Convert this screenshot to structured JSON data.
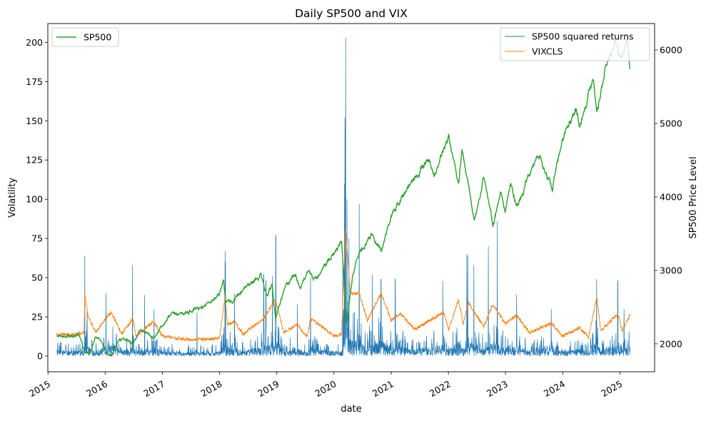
{
  "chart_data": {
    "type": "line",
    "title": "Daily SP500 and VIX",
    "xlabel": "date",
    "ylabel_left": "Volatility",
    "ylabel_right": "SP500 Price Level",
    "xlim": [
      "2014-12-31",
      "2025-08-10"
    ],
    "ylim_left": [
      -10,
      212
    ],
    "ylim_right": [
      1620,
      6360
    ],
    "x_ticks": [
      "2015",
      "2016",
      "2017",
      "2018",
      "2019",
      "2020",
      "2021",
      "2022",
      "2023",
      "2024",
      "2025"
    ],
    "y_ticks_left": [
      0,
      25,
      50,
      75,
      100,
      125,
      150,
      175,
      200
    ],
    "y_ticks_right": [
      2000,
      3000,
      4000,
      5000,
      6000
    ],
    "legend_left": {
      "placement": "top-left",
      "entries": [
        "SP500"
      ]
    },
    "legend_right": {
      "placement": "top-right",
      "entries": [
        "SP500 squared returns",
        "VIXCLS"
      ]
    },
    "colors": {
      "SP500": "#2ca02c",
      "SP500 squared returns": "#1f77b4",
      "VIXCLS": "#ff7f0e"
    },
    "series": [
      {
        "name": "SP500",
        "axis": "right",
        "points": [
          [
            "2015-02-27",
            2100
          ],
          [
            "2015-04-15",
            2095
          ],
          [
            "2015-06-01",
            2110
          ],
          [
            "2015-07-20",
            2125
          ],
          [
            "2015-08-25",
            1880
          ],
          [
            "2015-09-29",
            1885
          ],
          [
            "2015-11-03",
            2105
          ],
          [
            "2015-12-15",
            2040
          ],
          [
            "2016-01-20",
            1860
          ],
          [
            "2016-02-11",
            1830
          ],
          [
            "2016-03-31",
            2060
          ],
          [
            "2016-05-20",
            2050
          ],
          [
            "2016-06-27",
            2000
          ],
          [
            "2016-08-15",
            2190
          ],
          [
            "2016-11-04",
            2085
          ],
          [
            "2016-12-30",
            2240
          ],
          [
            "2017-03-01",
            2395
          ],
          [
            "2017-06-01",
            2430
          ],
          [
            "2017-09-01",
            2475
          ],
          [
            "2017-12-29",
            2675
          ],
          [
            "2018-01-26",
            2870
          ],
          [
            "2018-02-08",
            2580
          ],
          [
            "2018-04-02",
            2580
          ],
          [
            "2018-06-12",
            2785
          ],
          [
            "2018-09-20",
            2930
          ],
          [
            "2018-10-29",
            2640
          ],
          [
            "2018-12-03",
            2790
          ],
          [
            "2018-12-24",
            2350
          ],
          [
            "2019-02-28",
            2780
          ],
          [
            "2019-04-30",
            2945
          ],
          [
            "2019-06-03",
            2745
          ],
          [
            "2019-07-26",
            3025
          ],
          [
            "2019-08-23",
            2845
          ],
          [
            "2019-10-31",
            3035
          ],
          [
            "2019-12-31",
            3230
          ],
          [
            "2020-02-19",
            3385
          ],
          [
            "2020-03-23",
            2235
          ],
          [
            "2020-04-29",
            2940
          ],
          [
            "2020-06-08",
            3230
          ],
          [
            "2020-08-31",
            3500
          ],
          [
            "2020-10-30",
            3270
          ],
          [
            "2020-12-31",
            3755
          ],
          [
            "2021-04-30",
            4180
          ],
          [
            "2021-08-31",
            4520
          ],
          [
            "2021-10-04",
            4300
          ],
          [
            "2022-01-03",
            4795
          ],
          [
            "2022-03-08",
            4170
          ],
          [
            "2022-03-29",
            4630
          ],
          [
            "2022-06-16",
            3665
          ],
          [
            "2022-08-16",
            4305
          ],
          [
            "2022-10-12",
            3575
          ],
          [
            "2022-12-01",
            4075
          ],
          [
            "2022-12-28",
            3785
          ],
          [
            "2023-02-02",
            4180
          ],
          [
            "2023-03-13",
            3855
          ],
          [
            "2023-07-31",
            4590
          ],
          [
            "2023-10-27",
            4115
          ],
          [
            "2023-12-29",
            4770
          ],
          [
            "2024-03-28",
            5255
          ],
          [
            "2024-04-19",
            4965
          ],
          [
            "2024-07-16",
            5665
          ],
          [
            "2024-08-05",
            5185
          ],
          [
            "2024-09-30",
            5760
          ],
          [
            "2024-12-06",
            6090
          ],
          [
            "2024-12-31",
            5880
          ],
          [
            "2025-02-19",
            6145
          ],
          [
            "2025-03-07",
            5770
          ]
        ]
      },
      {
        "name": "SP500 squared returns",
        "axis": "left",
        "baseline": 3.5,
        "noise_amplitude": 14,
        "spikes": [
          [
            "2015-08-24",
            64
          ],
          [
            "2015-09-08",
            28
          ],
          [
            "2016-01-07",
            40
          ],
          [
            "2016-06-24",
            58
          ],
          [
            "2016-09-09",
            39
          ],
          [
            "2016-11-08",
            30
          ],
          [
            "2017-08-10",
            28
          ],
          [
            "2018-02-05",
            67
          ],
          [
            "2018-02-08",
            60
          ],
          [
            "2018-04-06",
            40
          ],
          [
            "2018-10-10",
            52
          ],
          [
            "2018-10-24",
            48
          ],
          [
            "2018-12-04",
            51
          ],
          [
            "2018-12-26",
            77
          ],
          [
            "2019-05-13",
            33
          ],
          [
            "2019-08-05",
            50
          ],
          [
            "2020-02-27",
            58
          ],
          [
            "2020-03-09",
            110
          ],
          [
            "2020-03-12",
            152
          ],
          [
            "2020-03-13",
            130
          ],
          [
            "2020-03-16",
            203
          ],
          [
            "2020-03-24",
            100
          ],
          [
            "2020-04-06",
            75
          ],
          [
            "2020-06-11",
            97
          ],
          [
            "2020-09-03",
            52
          ],
          [
            "2020-10-28",
            49
          ],
          [
            "2021-01-27",
            49
          ],
          [
            "2021-11-26",
            48
          ],
          [
            "2022-04-29",
            65
          ],
          [
            "2022-05-05",
            64
          ],
          [
            "2022-06-13",
            58
          ],
          [
            "2022-09-13",
            70
          ],
          [
            "2022-11-10",
            86
          ],
          [
            "2023-03-13",
            39
          ],
          [
            "2023-10-20",
            30
          ],
          [
            "2024-08-05",
            49
          ],
          [
            "2024-12-18",
            48
          ],
          [
            "2025-01-27",
            30
          ],
          [
            "2025-03-10",
            26
          ]
        ]
      },
      {
        "name": "VIXCLS",
        "axis": "left",
        "noise_amplitude": 2.2,
        "points": [
          [
            "2015-02-27",
            14
          ],
          [
            "2015-06-01",
            13.5
          ],
          [
            "2015-08-20",
            15
          ],
          [
            "2015-08-24",
            40
          ],
          [
            "2015-09-15",
            25
          ],
          [
            "2015-11-01",
            15
          ],
          [
            "2016-01-20",
            26
          ],
          [
            "2016-02-11",
            28
          ],
          [
            "2016-04-15",
            14
          ],
          [
            "2016-06-27",
            24
          ],
          [
            "2016-07-15",
            12.5
          ],
          [
            "2016-11-04",
            22
          ],
          [
            "2016-12-30",
            13
          ],
          [
            "2017-06-01",
            10.5
          ],
          [
            "2017-12-29",
            11
          ],
          [
            "2018-02-05",
            37
          ],
          [
            "2018-02-20",
            20
          ],
          [
            "2018-04-06",
            22
          ],
          [
            "2018-06-01",
            14
          ],
          [
            "2018-10-10",
            24
          ],
          [
            "2018-12-24",
            36
          ],
          [
            "2019-02-15",
            15
          ],
          [
            "2019-05-13",
            20
          ],
          [
            "2019-07-15",
            12.5
          ],
          [
            "2019-08-05",
            24
          ],
          [
            "2019-12-31",
            13
          ],
          [
            "2020-02-19",
            14
          ],
          [
            "2020-03-16",
            82
          ],
          [
            "2020-04-15",
            40
          ],
          [
            "2020-06-11",
            40
          ],
          [
            "2020-08-01",
            23
          ],
          [
            "2020-10-28",
            40
          ],
          [
            "2020-12-31",
            23
          ],
          [
            "2021-03-01",
            27
          ],
          [
            "2021-06-01",
            17
          ],
          [
            "2021-11-30",
            28
          ],
          [
            "2022-01-03",
            17
          ],
          [
            "2022-03-07",
            36
          ],
          [
            "2022-04-05",
            20
          ],
          [
            "2022-05-09",
            34
          ],
          [
            "2022-08-16",
            19
          ],
          [
            "2022-10-12",
            33
          ],
          [
            "2022-12-30",
            21
          ],
          [
            "2023-03-13",
            26
          ],
          [
            "2023-06-01",
            15
          ],
          [
            "2023-10-20",
            21
          ],
          [
            "2023-12-29",
            12.5
          ],
          [
            "2024-04-19",
            18
          ],
          [
            "2024-06-15",
            12
          ],
          [
            "2024-08-05",
            38
          ],
          [
            "2024-09-01",
            16
          ],
          [
            "2024-12-18",
            27
          ],
          [
            "2025-01-15",
            16
          ],
          [
            "2025-03-10",
            27
          ]
        ]
      }
    ]
  }
}
